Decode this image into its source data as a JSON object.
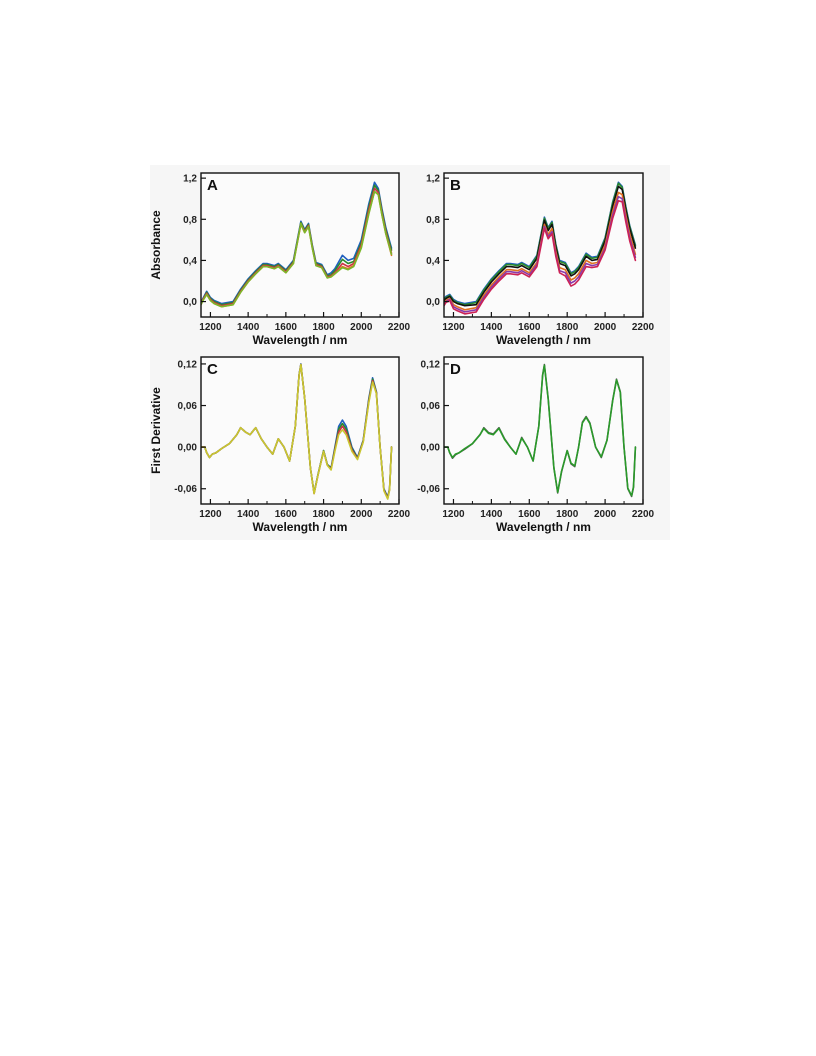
{
  "chart_data": [
    {
      "panel": "A",
      "type": "line",
      "xlabel": "Wavelength / nm",
      "ylabel": "Absorbance",
      "xlim": [
        1150,
        2200
      ],
      "ylim": [
        -0.15,
        1.25
      ],
      "xticks": [
        1200,
        1400,
        1600,
        1800,
        2000,
        2200
      ],
      "yticks": [
        0.0,
        0.4,
        0.8,
        1.2
      ],
      "ytick_labels": [
        "0,0",
        "0,4",
        "0,8",
        "1,2"
      ],
      "legend": "none",
      "grid": false,
      "x": [
        1150,
        1160,
        1180,
        1200,
        1220,
        1260,
        1320,
        1360,
        1400,
        1440,
        1480,
        1500,
        1540,
        1560,
        1600,
        1640,
        1680,
        1700,
        1720,
        1740,
        1760,
        1790,
        1820,
        1840,
        1860,
        1900,
        1930,
        1960,
        2000,
        2040,
        2070,
        2090,
        2110,
        2130,
        2160
      ],
      "series": [
        {
          "color": "#1f5fbf",
          "values": [
            -0.01,
            0.03,
            0.1,
            0.04,
            0.01,
            -0.02,
            0.0,
            0.12,
            0.22,
            0.3,
            0.37,
            0.37,
            0.35,
            0.37,
            0.31,
            0.4,
            0.78,
            0.7,
            0.76,
            0.55,
            0.38,
            0.36,
            0.26,
            0.28,
            0.32,
            0.45,
            0.4,
            0.42,
            0.6,
            0.95,
            1.16,
            1.1,
            0.9,
            0.72,
            0.52
          ]
        },
        {
          "color": "#2a8a2a",
          "values": [
            -0.02,
            0.02,
            0.09,
            0.03,
            0.0,
            -0.03,
            -0.01,
            0.11,
            0.21,
            0.29,
            0.36,
            0.36,
            0.34,
            0.36,
            0.3,
            0.39,
            0.77,
            0.69,
            0.75,
            0.54,
            0.37,
            0.35,
            0.25,
            0.26,
            0.3,
            0.41,
            0.37,
            0.39,
            0.57,
            0.92,
            1.13,
            1.08,
            0.88,
            0.7,
            0.5
          ]
        },
        {
          "color": "#cc3344",
          "values": [
            -0.02,
            0.02,
            0.08,
            0.02,
            -0.01,
            -0.04,
            -0.02,
            0.1,
            0.2,
            0.28,
            0.35,
            0.35,
            0.33,
            0.35,
            0.29,
            0.38,
            0.76,
            0.68,
            0.74,
            0.53,
            0.36,
            0.34,
            0.24,
            0.25,
            0.28,
            0.37,
            0.34,
            0.37,
            0.55,
            0.89,
            1.1,
            1.06,
            0.86,
            0.68,
            0.47
          ]
        },
        {
          "color": "#e07020",
          "values": [
            -0.03,
            0.01,
            0.07,
            0.01,
            -0.02,
            -0.05,
            -0.03,
            0.09,
            0.19,
            0.27,
            0.34,
            0.34,
            0.32,
            0.34,
            0.28,
            0.37,
            0.75,
            0.67,
            0.73,
            0.52,
            0.35,
            0.33,
            0.23,
            0.24,
            0.27,
            0.34,
            0.32,
            0.35,
            0.53,
            0.86,
            1.07,
            1.04,
            0.84,
            0.66,
            0.45
          ]
        },
        {
          "color": "#7ab82a",
          "values": [
            -0.03,
            0.01,
            0.07,
            0.01,
            -0.02,
            -0.05,
            -0.03,
            0.09,
            0.19,
            0.27,
            0.34,
            0.34,
            0.32,
            0.34,
            0.28,
            0.37,
            0.76,
            0.67,
            0.73,
            0.52,
            0.35,
            0.33,
            0.23,
            0.24,
            0.27,
            0.33,
            0.31,
            0.34,
            0.52,
            0.85,
            1.07,
            1.04,
            0.84,
            0.66,
            0.46
          ]
        }
      ]
    },
    {
      "panel": "B",
      "type": "line",
      "xlabel": "Wavelength / nm",
      "ylabel": "",
      "xlim": [
        1150,
        2200
      ],
      "ylim": [
        -0.15,
        1.25
      ],
      "xticks": [
        1200,
        1400,
        1600,
        1800,
        2000,
        2200
      ],
      "yticks": [
        0.0,
        0.4,
        0.8,
        1.2
      ],
      "ytick_labels": [
        "0,0",
        "0,4",
        "0,8",
        "1,2"
      ],
      "legend": "none",
      "grid": false,
      "x": [
        1150,
        1160,
        1180,
        1200,
        1220,
        1260,
        1320,
        1360,
        1400,
        1440,
        1480,
        1500,
        1540,
        1560,
        1600,
        1640,
        1680,
        1700,
        1720,
        1740,
        1760,
        1790,
        1820,
        1840,
        1860,
        1900,
        1930,
        1960,
        2000,
        2040,
        2070,
        2090,
        2110,
        2130,
        2160
      ],
      "series": [
        {
          "color": "#1f5fbf",
          "values": [
            0.02,
            0.05,
            0.07,
            0.02,
            0.0,
            -0.02,
            0.0,
            0.12,
            0.22,
            0.3,
            0.37,
            0.37,
            0.36,
            0.38,
            0.34,
            0.45,
            0.82,
            0.72,
            0.78,
            0.56,
            0.4,
            0.38,
            0.28,
            0.3,
            0.34,
            0.47,
            0.43,
            0.44,
            0.62,
            0.97,
            1.16,
            1.12,
            0.92,
            0.74,
            0.55
          ]
        },
        {
          "color": "#2a8a2a",
          "values": [
            0.01,
            0.04,
            0.06,
            0.01,
            -0.01,
            -0.03,
            -0.01,
            0.11,
            0.21,
            0.29,
            0.36,
            0.36,
            0.35,
            0.37,
            0.33,
            0.44,
            0.81,
            0.71,
            0.77,
            0.55,
            0.39,
            0.37,
            0.27,
            0.29,
            0.33,
            0.46,
            0.42,
            0.43,
            0.61,
            0.96,
            1.15,
            1.11,
            0.91,
            0.73,
            0.54
          ]
        },
        {
          "color": "#111111",
          "values": [
            0.0,
            0.03,
            0.05,
            0.0,
            -0.02,
            -0.04,
            -0.03,
            0.09,
            0.19,
            0.27,
            0.34,
            0.34,
            0.33,
            0.35,
            0.31,
            0.42,
            0.79,
            0.69,
            0.75,
            0.53,
            0.37,
            0.35,
            0.25,
            0.27,
            0.31,
            0.44,
            0.4,
            0.41,
            0.59,
            0.93,
            1.12,
            1.09,
            0.89,
            0.71,
            0.52
          ]
        },
        {
          "color": "#e07020",
          "values": [
            -0.02,
            0.01,
            0.03,
            -0.03,
            -0.05,
            -0.08,
            -0.06,
            0.06,
            0.16,
            0.24,
            0.31,
            0.31,
            0.3,
            0.32,
            0.28,
            0.38,
            0.75,
            0.65,
            0.71,
            0.49,
            0.33,
            0.31,
            0.21,
            0.23,
            0.27,
            0.4,
            0.37,
            0.38,
            0.55,
            0.88,
            1.06,
            1.04,
            0.84,
            0.66,
            0.46
          ]
        },
        {
          "color": "#8a3aaa",
          "values": [
            -0.03,
            0.0,
            0.02,
            -0.05,
            -0.07,
            -0.1,
            -0.08,
            0.04,
            0.14,
            0.22,
            0.29,
            0.29,
            0.28,
            0.3,
            0.26,
            0.36,
            0.73,
            0.63,
            0.68,
            0.46,
            0.3,
            0.28,
            0.18,
            0.2,
            0.24,
            0.37,
            0.35,
            0.36,
            0.52,
            0.84,
            1.02,
            1.0,
            0.8,
            0.62,
            0.43
          ]
        },
        {
          "color": "#cc2255",
          "values": [
            -0.04,
            -0.01,
            0.01,
            -0.07,
            -0.09,
            -0.12,
            -0.1,
            0.02,
            0.12,
            0.2,
            0.27,
            0.27,
            0.26,
            0.28,
            0.24,
            0.34,
            0.71,
            0.61,
            0.66,
            0.44,
            0.28,
            0.25,
            0.15,
            0.17,
            0.21,
            0.34,
            0.33,
            0.34,
            0.5,
            0.81,
            0.98,
            0.97,
            0.77,
            0.59,
            0.4
          ]
        }
      ]
    },
    {
      "panel": "C",
      "type": "line",
      "xlabel": "Wavelength / nm",
      "ylabel": "First Derivative",
      "xlim": [
        1150,
        2200
      ],
      "ylim": [
        -0.082,
        0.13
      ],
      "xticks": [
        1200,
        1400,
        1600,
        1800,
        2000,
        2200
      ],
      "yticks": [
        -0.06,
        0.0,
        0.06,
        0.12
      ],
      "ytick_labels": [
        "-0,06",
        "0,00",
        "0,06",
        "0,12"
      ],
      "legend": "none",
      "grid": false,
      "x": [
        1150,
        1170,
        1180,
        1195,
        1210,
        1230,
        1260,
        1300,
        1340,
        1360,
        1385,
        1410,
        1440,
        1470,
        1500,
        1530,
        1560,
        1590,
        1620,
        1650,
        1670,
        1680,
        1700,
        1730,
        1750,
        1770,
        1800,
        1820,
        1840,
        1860,
        1880,
        1900,
        1920,
        1950,
        1980,
        2010,
        2040,
        2060,
        2080,
        2100,
        2120,
        2140,
        2150,
        2160
      ],
      "series": [
        {
          "color": "#1f5fbf",
          "values": [
            0.0,
            0.0,
            -0.008,
            -0.015,
            -0.01,
            -0.008,
            -0.002,
            0.005,
            0.018,
            0.028,
            0.022,
            0.018,
            0.028,
            0.012,
            0.0,
            -0.01,
            0.012,
            0.0,
            -0.02,
            0.03,
            0.105,
            0.12,
            0.07,
            -0.03,
            -0.066,
            -0.04,
            -0.005,
            -0.025,
            -0.03,
            0.0,
            0.03,
            0.039,
            0.03,
            0.0,
            -0.015,
            0.01,
            0.07,
            0.1,
            0.08,
            0.0,
            -0.06,
            -0.072,
            -0.06,
            0.0
          ]
        },
        {
          "color": "#2a8a2a",
          "values": [
            0.0,
            0.0,
            -0.008,
            -0.015,
            -0.01,
            -0.008,
            -0.002,
            0.005,
            0.018,
            0.028,
            0.022,
            0.018,
            0.028,
            0.012,
            0.0,
            -0.01,
            0.012,
            0.0,
            -0.02,
            0.03,
            0.104,
            0.119,
            0.07,
            -0.03,
            -0.066,
            -0.04,
            -0.005,
            -0.025,
            -0.031,
            -0.002,
            0.026,
            0.034,
            0.026,
            -0.002,
            -0.016,
            0.009,
            0.068,
            0.098,
            0.079,
            0.0,
            -0.061,
            -0.073,
            -0.06,
            0.0
          ]
        },
        {
          "color": "#cc3344",
          "values": [
            0.0,
            0.0,
            -0.008,
            -0.015,
            -0.01,
            -0.008,
            -0.002,
            0.005,
            0.018,
            0.028,
            0.022,
            0.018,
            0.028,
            0.012,
            0.0,
            -0.01,
            0.012,
            0.0,
            -0.02,
            0.03,
            0.104,
            0.119,
            0.07,
            -0.03,
            -0.067,
            -0.041,
            -0.006,
            -0.026,
            -0.032,
            -0.004,
            0.022,
            0.03,
            0.022,
            -0.004,
            -0.017,
            0.008,
            0.066,
            0.096,
            0.078,
            0.0,
            -0.062,
            -0.074,
            -0.061,
            0.0
          ]
        },
        {
          "color": "#c8c830",
          "values": [
            0.0,
            0.0,
            -0.008,
            -0.015,
            -0.01,
            -0.008,
            -0.002,
            0.005,
            0.018,
            0.028,
            0.022,
            0.018,
            0.028,
            0.012,
            0.0,
            -0.01,
            0.012,
            0.0,
            -0.02,
            0.03,
            0.104,
            0.119,
            0.07,
            -0.03,
            -0.067,
            -0.041,
            -0.006,
            -0.026,
            -0.033,
            -0.006,
            0.018,
            0.025,
            0.018,
            -0.006,
            -0.018,
            0.007,
            0.064,
            0.094,
            0.077,
            0.0,
            -0.063,
            -0.075,
            -0.062,
            0.0
          ]
        }
      ]
    },
    {
      "panel": "D",
      "type": "line",
      "xlabel": "Wavelength / nm",
      "ylabel": "",
      "xlim": [
        1150,
        2200
      ],
      "ylim": [
        -0.082,
        0.13
      ],
      "xticks": [
        1200,
        1400,
        1600,
        1800,
        2000,
        2200
      ],
      "yticks": [
        -0.06,
        0.0,
        0.06,
        0.12
      ],
      "ytick_labels": [
        "-0,06",
        "0,00",
        "0,06",
        "0,12"
      ],
      "legend": "none",
      "grid": false,
      "x": [
        1150,
        1170,
        1180,
        1195,
        1210,
        1230,
        1260,
        1300,
        1340,
        1360,
        1385,
        1410,
        1440,
        1470,
        1500,
        1530,
        1560,
        1590,
        1620,
        1650,
        1670,
        1680,
        1700,
        1730,
        1750,
        1770,
        1800,
        1820,
        1840,
        1860,
        1880,
        1900,
        1920,
        1950,
        1980,
        2010,
        2040,
        2060,
        2080,
        2100,
        2120,
        2140,
        2150,
        2160
      ],
      "series": [
        {
          "color": "#555555",
          "values": [
            0.0,
            0.0,
            -0.008,
            -0.016,
            -0.011,
            -0.008,
            -0.003,
            0.005,
            0.018,
            0.028,
            0.021,
            0.019,
            0.028,
            0.012,
            0.0,
            -0.01,
            0.014,
            0.0,
            -0.02,
            0.03,
            0.104,
            0.119,
            0.07,
            -0.03,
            -0.066,
            -0.036,
            -0.005,
            -0.024,
            -0.028,
            0.0,
            0.036,
            0.044,
            0.035,
            0.0,
            -0.015,
            0.01,
            0.068,
            0.098,
            0.08,
            0.0,
            -0.06,
            -0.071,
            -0.058,
            0.0
          ]
        },
        {
          "color": "#2a9a2a",
          "values": [
            0.0,
            0.0,
            -0.008,
            -0.015,
            -0.01,
            -0.008,
            -0.002,
            0.005,
            0.018,
            0.027,
            0.02,
            0.018,
            0.027,
            0.011,
            0.0,
            -0.01,
            0.013,
            0.0,
            -0.02,
            0.03,
            0.103,
            0.118,
            0.069,
            -0.03,
            -0.065,
            -0.035,
            -0.005,
            -0.023,
            -0.027,
            0.0,
            0.035,
            0.043,
            0.034,
            0.0,
            -0.014,
            0.01,
            0.067,
            0.097,
            0.079,
            0.0,
            -0.059,
            -0.07,
            -0.057,
            0.0
          ]
        }
      ]
    }
  ],
  "panels": [
    {
      "letter": "A",
      "xlabel": "Wavelength / nm",
      "ylabel": "Absorbance",
      "xticks": [
        "1200",
        "1400",
        "1600",
        "1800",
        "2000",
        "2200"
      ],
      "yticks": [
        "0,0",
        "0,4",
        "0,8",
        "1,2"
      ]
    },
    {
      "letter": "B",
      "xlabel": "Wavelength / nm",
      "ylabel": "",
      "xticks": [
        "1200",
        "1400",
        "1600",
        "1800",
        "2000",
        "2200"
      ],
      "yticks": [
        "0,0",
        "0,4",
        "0,8",
        "1,2"
      ]
    },
    {
      "letter": "C",
      "xlabel": "Wavelength / nm",
      "ylabel": "First Derivative",
      "xticks": [
        "1200",
        "1400",
        "1600",
        "1800",
        "2000",
        "2200"
      ],
      "yticks": [
        "-0,06",
        "0,00",
        "0,06",
        "0,12"
      ]
    },
    {
      "letter": "D",
      "xlabel": "Wavelength / nm",
      "ylabel": "",
      "xticks": [
        "1200",
        "1400",
        "1600",
        "1800",
        "2000",
        "2200"
      ],
      "yticks": [
        "-0,06",
        "0,00",
        "0,06",
        "0,12"
      ]
    }
  ]
}
